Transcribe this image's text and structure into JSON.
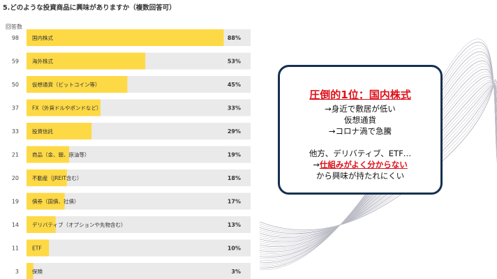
{
  "question": "5.どのような投資商品に興味がありますか（複数回答可）",
  "count_header": "回答数",
  "colors": {
    "bar_fill": "#fdd946",
    "track": "#eaeaea",
    "callout_border": "#15304f",
    "callout_red": "#e0101a"
  },
  "chart_data": {
    "type": "bar",
    "orientation": "horizontal",
    "categories": [
      "国内株式",
      "海外株式",
      "仮想通貨（ビットコイン等）",
      "FX（外貨ドルやポンドなど）",
      "投資信託",
      "商品（金、銀、原油等）",
      "不動産（JREIT含む）",
      "債券（国債、社債）",
      "デリバティブ（オプションや先物含む）",
      "ETF",
      "保険"
    ],
    "counts": [
      98,
      59,
      50,
      37,
      33,
      21,
      20,
      19,
      14,
      11,
      3
    ],
    "percent_labels": [
      "88%",
      "53%",
      "45%",
      "33%",
      "29%",
      "19%",
      "18%",
      "17%",
      "13%",
      "10%",
      "3%"
    ],
    "values": [
      88,
      53,
      45,
      33,
      29,
      19,
      18,
      17,
      13,
      10,
      3
    ],
    "xlim": [
      0,
      100
    ]
  },
  "callout": {
    "headline": "圧倒的1位：国内株式",
    "line1": "→身近で敷居が低い",
    "line2": "仮想通貨",
    "line3": "→コロナ渦で急騰",
    "line4": "他方、デリバティブ、ETF…",
    "line5_arrow": "→",
    "line5_red": "仕組みがよく分からない",
    "line6": "から興味が持たれにくい"
  }
}
